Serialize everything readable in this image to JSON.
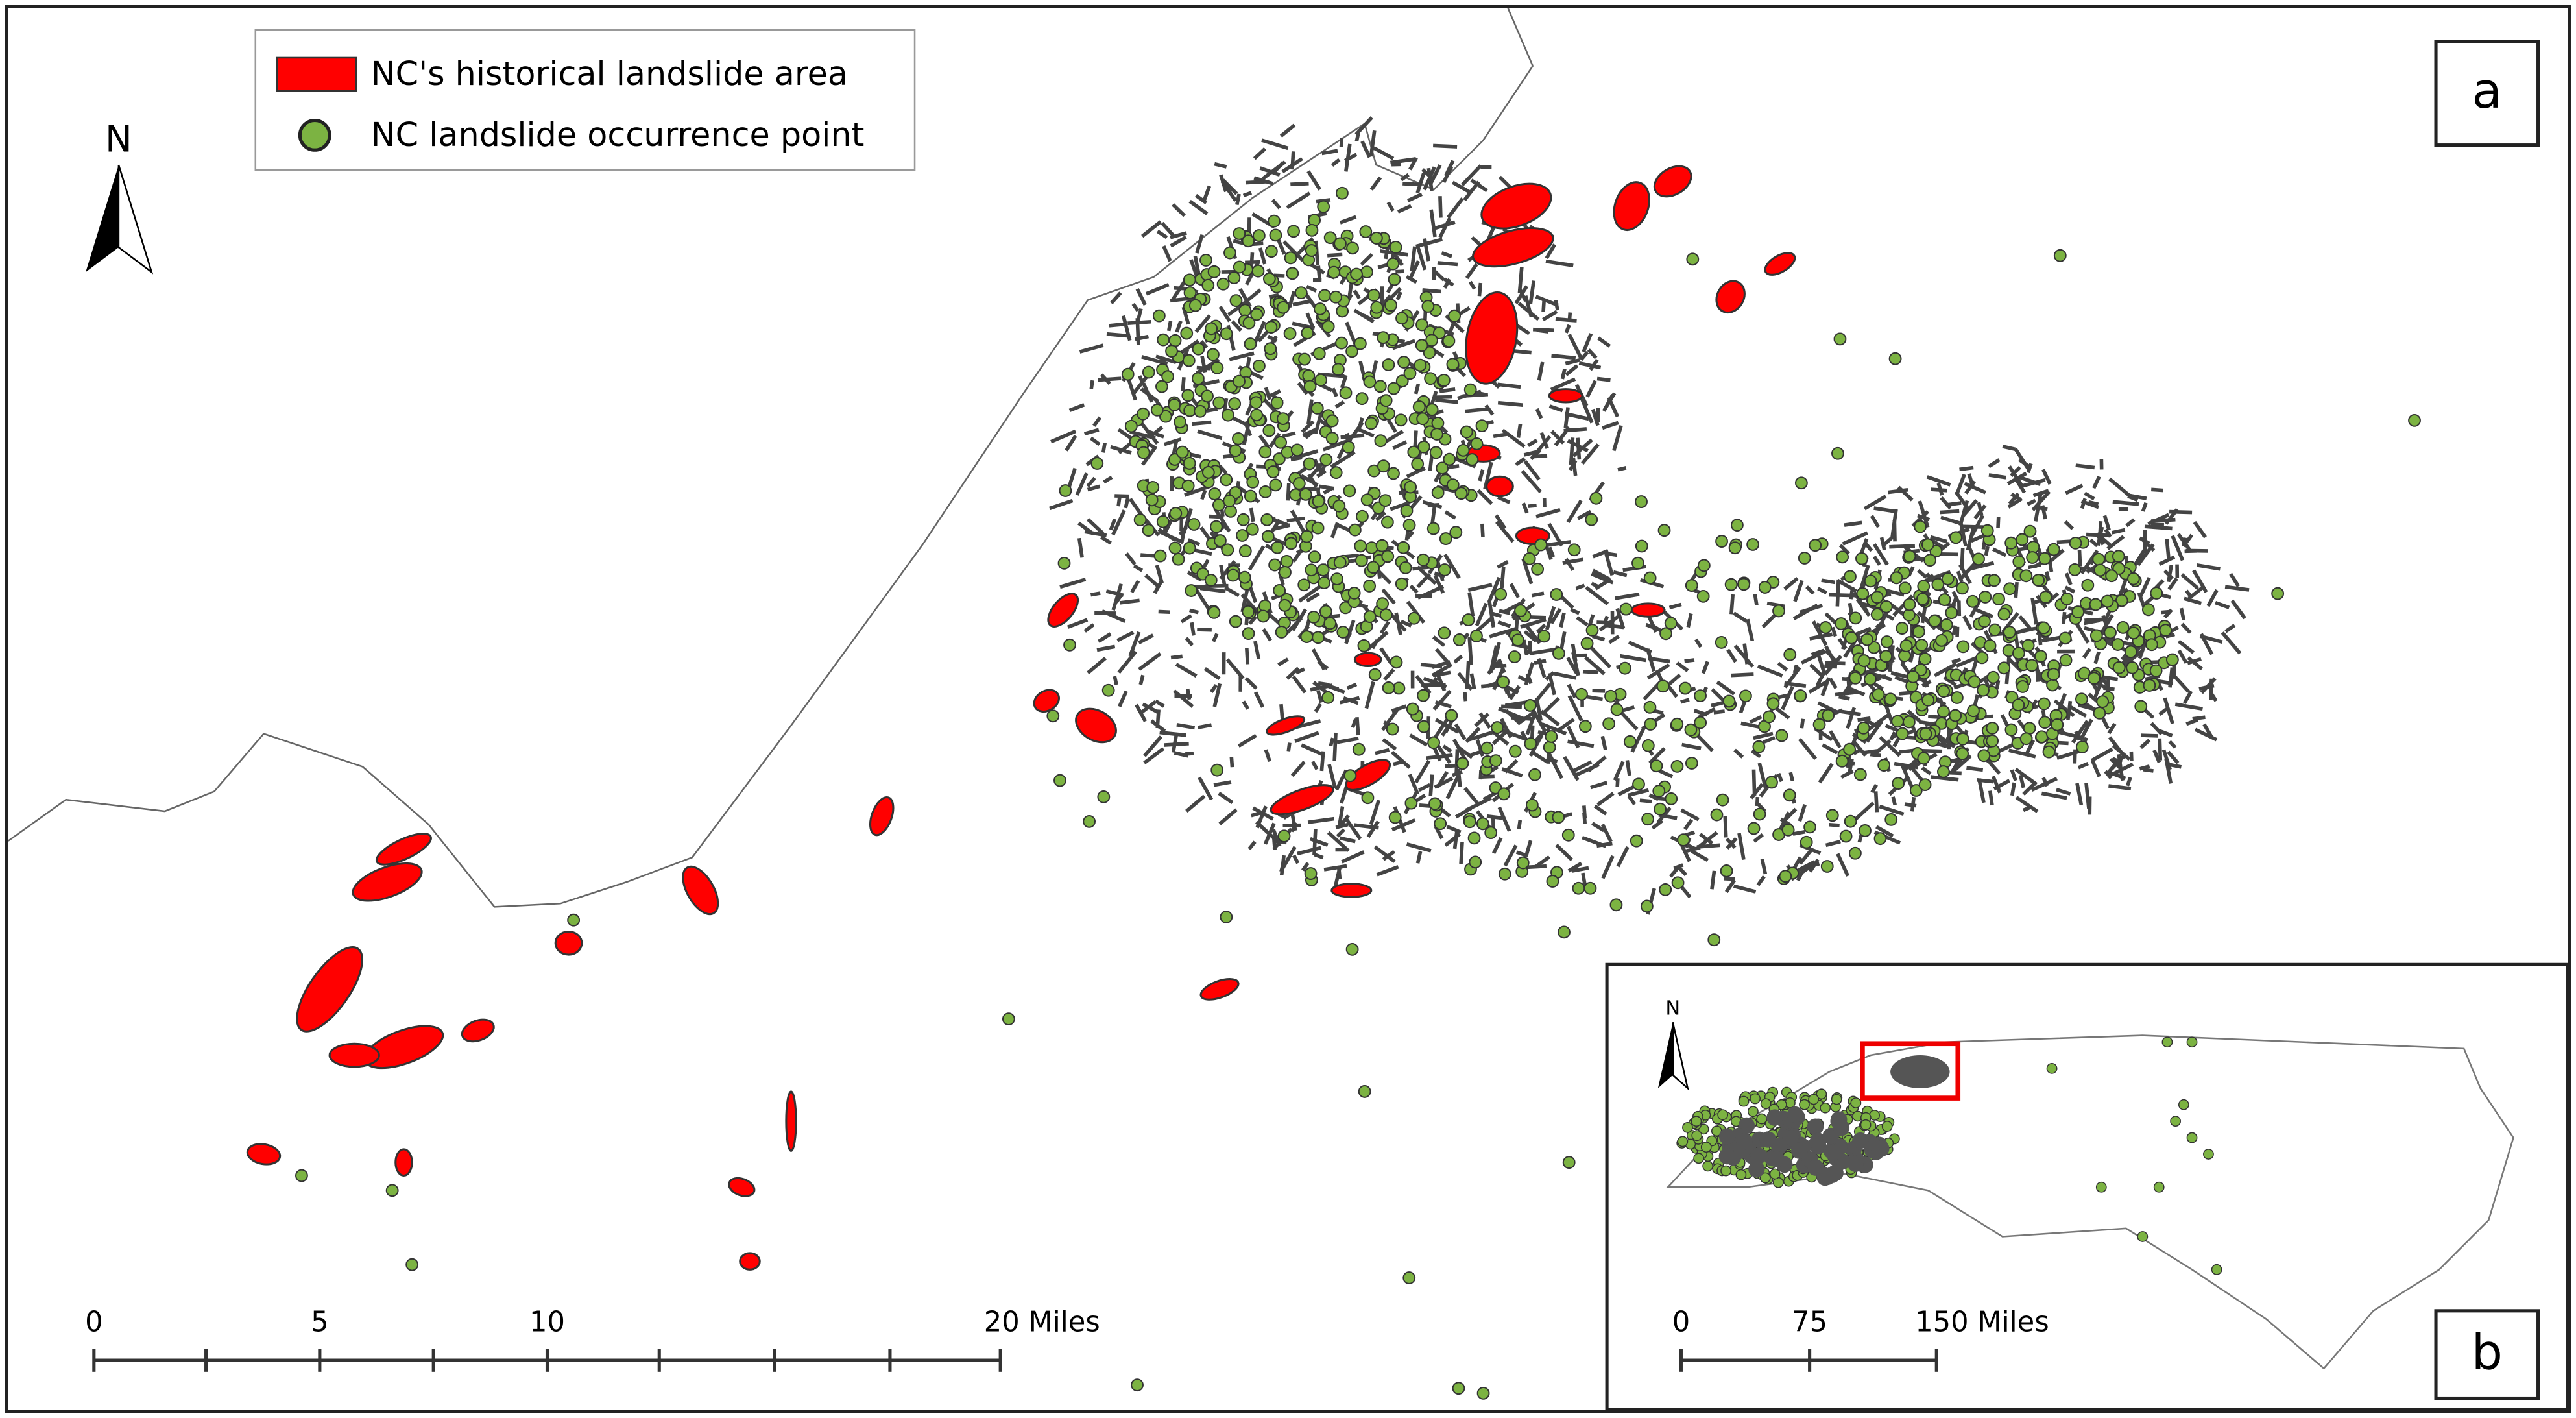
{
  "legend": {
    "items": [
      "NC's historical landslide area",
      "NC landslide occurrence point"
    ]
  },
  "north_arrow": {
    "label": "N"
  },
  "panel_labels": [
    "a",
    "b"
  ],
  "scale_bar": {
    "labels": [
      "0",
      "5",
      "10",
      "20 Miles"
    ]
  },
  "inset": {
    "north_label": "N",
    "scale_bar": {
      "labels": [
        "0",
        "75",
        "150 Miles"
      ]
    }
  }
}
